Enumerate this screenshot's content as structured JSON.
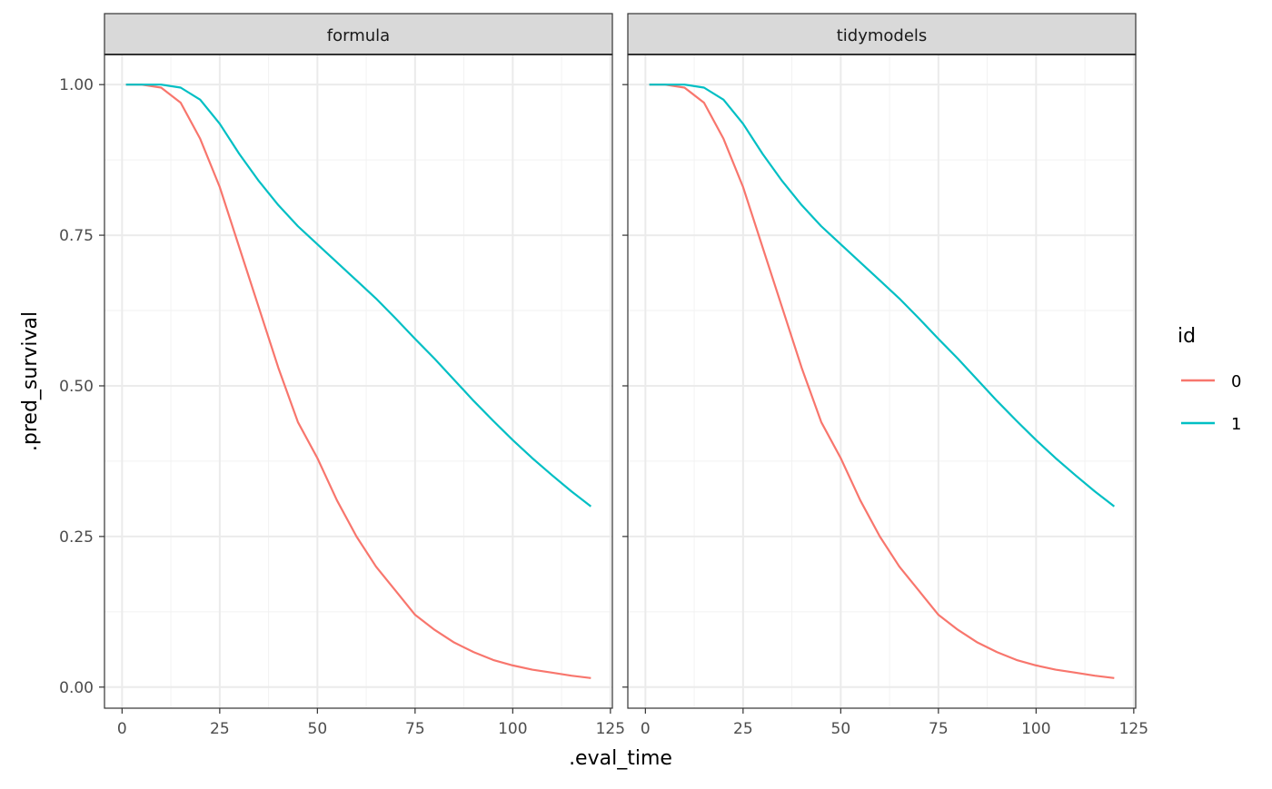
{
  "chart_data": {
    "type": "line",
    "xlabel": ".eval_time",
    "ylabel": ".pred_survival",
    "xlim": [
      -4.5,
      125.5
    ],
    "ylim": [
      -0.035,
      1.05
    ],
    "x_ticks": [
      0,
      25,
      50,
      75,
      100,
      125
    ],
    "y_ticks": [
      0.0,
      0.25,
      0.5,
      0.75,
      1.0
    ],
    "x_tick_labels": [
      "0",
      "25",
      "50",
      "75",
      "100",
      "125"
    ],
    "y_tick_labels": [
      "0.00",
      "0.25",
      "0.50",
      "0.75",
      "1.00"
    ],
    "grid": true,
    "legend": {
      "title": "id",
      "placement": "right",
      "entries": [
        {
          "label": "0",
          "color": "#F8766D"
        },
        {
          "label": "1",
          "color": "#00BFC4"
        }
      ]
    },
    "panels": [
      {
        "strip": "formula",
        "series": [
          {
            "name": "0",
            "color": "#F8766D",
            "x": [
              1,
              5,
              10,
              15,
              20,
              25,
              30,
              35,
              40,
              45,
              50,
              55,
              60,
              65,
              70,
              75,
              80,
              85,
              90,
              95,
              100,
              105,
              110,
              115,
              120
            ],
            "y": [
              1.0,
              1.0,
              0.995,
              0.97,
              0.91,
              0.83,
              0.73,
              0.63,
              0.53,
              0.44,
              0.38,
              0.31,
              0.25,
              0.2,
              0.16,
              0.12,
              0.095,
              0.074,
              0.058,
              0.045,
              0.036,
              0.029,
              0.024,
              0.019,
              0.015
            ]
          },
          {
            "name": "1",
            "color": "#00BFC4",
            "x": [
              1,
              5,
              10,
              15,
              20,
              25,
              30,
              35,
              40,
              45,
              50,
              55,
              60,
              65,
              70,
              75,
              80,
              85,
              90,
              95,
              100,
              105,
              110,
              115,
              120
            ],
            "y": [
              1.0,
              1.0,
              1.0,
              0.995,
              0.975,
              0.935,
              0.885,
              0.84,
              0.8,
              0.765,
              0.735,
              0.705,
              0.675,
              0.645,
              0.612,
              0.578,
              0.545,
              0.51,
              0.475,
              0.442,
              0.41,
              0.38,
              0.352,
              0.325,
              0.3
            ]
          }
        ]
      },
      {
        "strip": "tidymodels",
        "series": [
          {
            "name": "0",
            "color": "#F8766D",
            "x": [
              1,
              5,
              10,
              15,
              20,
              25,
              30,
              35,
              40,
              45,
              50,
              55,
              60,
              65,
              70,
              75,
              80,
              85,
              90,
              95,
              100,
              105,
              110,
              115,
              120
            ],
            "y": [
              1.0,
              1.0,
              0.995,
              0.97,
              0.91,
              0.83,
              0.73,
              0.63,
              0.53,
              0.44,
              0.38,
              0.31,
              0.25,
              0.2,
              0.16,
              0.12,
              0.095,
              0.074,
              0.058,
              0.045,
              0.036,
              0.029,
              0.024,
              0.019,
              0.015
            ]
          },
          {
            "name": "1",
            "color": "#00BFC4",
            "x": [
              1,
              5,
              10,
              15,
              20,
              25,
              30,
              35,
              40,
              45,
              50,
              55,
              60,
              65,
              70,
              75,
              80,
              85,
              90,
              95,
              100,
              105,
              110,
              115,
              120
            ],
            "y": [
              1.0,
              1.0,
              1.0,
              0.995,
              0.975,
              0.935,
              0.885,
              0.84,
              0.8,
              0.765,
              0.735,
              0.705,
              0.675,
              0.645,
              0.612,
              0.578,
              0.545,
              0.51,
              0.475,
              0.442,
              0.41,
              0.38,
              0.352,
              0.325,
              0.3
            ]
          }
        ]
      }
    ]
  }
}
